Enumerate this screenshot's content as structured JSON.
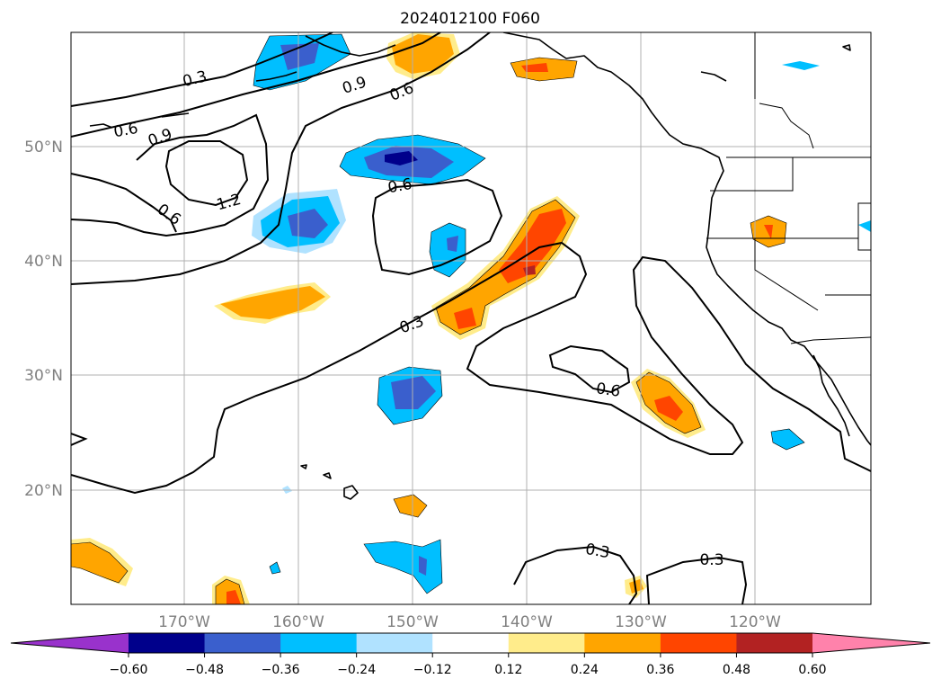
{
  "title": "2024012100 F060",
  "lat_labels": [
    "50°N",
    "40°N",
    "30°N",
    "20°N"
  ],
  "lon_labels": [
    "170°W",
    "160°W",
    "150°W",
    "140°W",
    "130°W",
    "120°W"
  ],
  "contour_labels": [
    "0.3",
    "0.9",
    "0.6",
    "0.6",
    "0.9",
    "1.2",
    "0.6",
    "0.6",
    "0.3",
    "0.6",
    "0.3",
    "0.3"
  ],
  "colorbar": {
    "colors": [
      "#9932cc",
      "#00008b",
      "#3a5fcd",
      "#00bfff",
      "#b0e2ff",
      "#ffffff",
      "#ffec8b",
      "#ffa500",
      "#ff4500",
      "#b22222",
      "#ff82ab"
    ],
    "tick_labels": [
      "−0.60",
      "−0.48",
      "−0.36",
      "−0.24",
      "−0.12",
      "0.12",
      "0.24",
      "0.36",
      "0.48",
      "0.60"
    ]
  }
}
